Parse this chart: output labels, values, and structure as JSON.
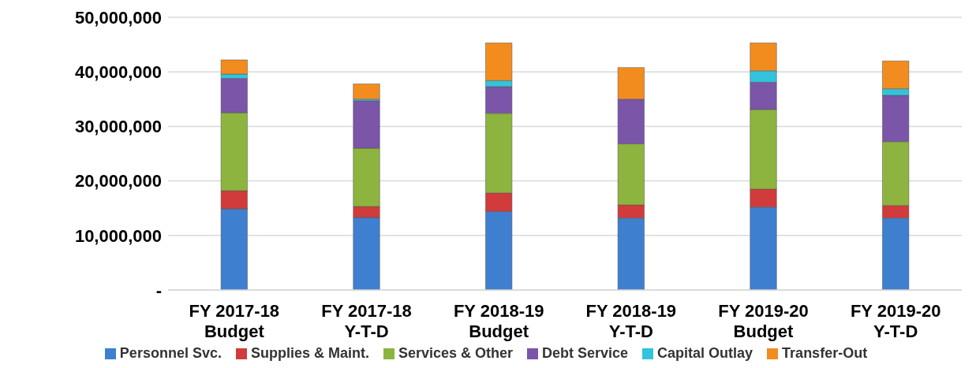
{
  "chart_data": {
    "type": "bar",
    "stacked": true,
    "categories": [
      "FY 2017-18\nBudget",
      "FY 2017-18\nY-T-D",
      "FY 2018-19\nBudget",
      "FY 2018-19\nY-T-D",
      "FY 2019-20\nBudget",
      "FY 2019-20\nY-T-D"
    ],
    "series": [
      {
        "name": "Personnel Svc.",
        "color": "#3f7fcf",
        "values": [
          14900000,
          13300000,
          14400000,
          13200000,
          15200000,
          13200000
        ]
      },
      {
        "name": "Supplies & Maint.",
        "color": "#d13b3b",
        "values": [
          3300000,
          2000000,
          3400000,
          2400000,
          3300000,
          2300000
        ]
      },
      {
        "name": "Services & Other",
        "color": "#8db43e",
        "values": [
          14300000,
          10700000,
          14600000,
          11200000,
          14600000,
          11700000
        ]
      },
      {
        "name": "Debt Service",
        "color": "#7a55a8",
        "values": [
          6300000,
          8700000,
          4900000,
          8200000,
          5000000,
          8500000
        ]
      },
      {
        "name": "Capital Outlay",
        "color": "#33c3dc",
        "values": [
          800000,
          300000,
          1100000,
          0,
          2100000,
          1200000
        ]
      },
      {
        "name": "Transfer-Out",
        "color": "#f28c1f",
        "values": [
          2600000,
          2800000,
          6900000,
          5800000,
          5100000,
          5100000
        ]
      }
    ],
    "ylim": [
      0,
      50000000
    ],
    "yticks": [
      {
        "value": 0,
        "label": "-"
      },
      {
        "value": 10000000,
        "label": "10,000,000"
      },
      {
        "value": 20000000,
        "label": "20,000,000"
      },
      {
        "value": 30000000,
        "label": "30,000,000"
      },
      {
        "value": 40000000,
        "label": "40,000,000"
      },
      {
        "value": 50000000,
        "label": "50,000,000"
      }
    ],
    "grid": "y",
    "legend": "bottom"
  }
}
